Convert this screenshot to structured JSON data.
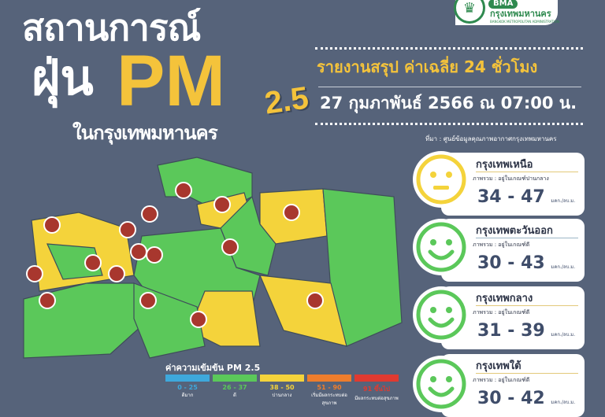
{
  "header": {
    "title_line1": "สถานการณ์",
    "title_dust": "ฝุ่น",
    "title_pm": "PM",
    "title_sub": "2.5",
    "title_line3": "ในกรุงเทพมหานคร"
  },
  "logo": {
    "abbr": "BMA",
    "name_th": "กรุงเทพมหานคร",
    "name_en": "BANGKOK METROPOLITAN ADMINISTRATION"
  },
  "report": {
    "heading": "รายงานสรุป ค่าเฉลี่ย 24 ชั่วโมง",
    "date": "27 กุมภาพันธ์ 2566 ณ 07:00 น.",
    "source": "ที่มา : ศูนย์ข้อมูลคุณภาพอากาศกรุงเทพมหานคร"
  },
  "zones": [
    {
      "name": "กรุงเทพเหนือ",
      "desc": "ภาพรวม : อยู่ในเกณฑ์ปานกลาง",
      "value": "34 - 47",
      "unit": "มคก./ลบ.ม.",
      "face": "neutral",
      "color": "#f4d33b"
    },
    {
      "name": "กรุงเทพตะวันออก",
      "desc": "ภาพรวม : อยู่ในเกณฑ์ดี",
      "value": "30 - 43",
      "unit": "มคก./ลบ.ม.",
      "face": "smile",
      "color": "#5bc85a"
    },
    {
      "name": "กรุงเทพกลาง",
      "desc": "ภาพรวม : อยู่ในเกณฑ์ดี",
      "value": "31 - 39",
      "unit": "มคก./ลบ.ม.",
      "face": "smile",
      "color": "#5bc85a"
    },
    {
      "name": "กรุงเทพใต้",
      "desc": "ภาพรวม : อยู่ในเกณฑ์ดี",
      "value": "30 - 42",
      "unit": "มคก./ลบ.ม.",
      "face": "smile",
      "color": "#5bc85a"
    }
  ],
  "legend": {
    "title": "ค่าความเข้มข้น PM 2.5",
    "items": [
      {
        "range": "0 - 25",
        "label": "ดีมาก",
        "color": "#3ea8dc"
      },
      {
        "range": "26 - 37",
        "label": "ดี",
        "color": "#5bc85a"
      },
      {
        "range": "38 - 50",
        "label": "ปานกลาง",
        "color": "#f4d33b"
      },
      {
        "range": "51 - 90",
        "label": "เริ่มมีผลกระทบต่อสุขภาพ",
        "color": "#ee7d2c"
      },
      {
        "range": "91 ขึ้นไป",
        "label": "มีผลกระทบต่อสุขภาพ",
        "color": "#e03a30"
      }
    ]
  },
  "colors": {
    "background": "#56637a",
    "accent": "#f4c33b",
    "good": "#5bc85a",
    "moderate": "#f4d33b"
  }
}
